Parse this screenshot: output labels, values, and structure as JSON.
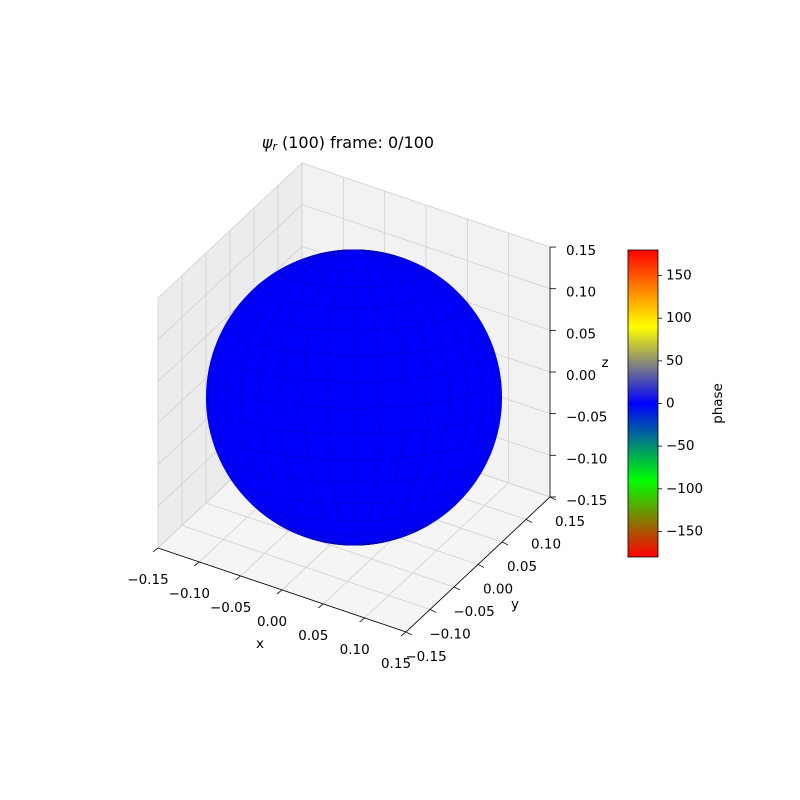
{
  "chart_data": {
    "type": "surface3d",
    "title": {
      "symbol": "ψ",
      "subscript": "r",
      "text": "(100) frame: 0/100"
    },
    "xlabel": "x",
    "ylabel": "y",
    "zlabel": "z",
    "xlim": [
      -0.15,
      0.15
    ],
    "ylim": [
      -0.15,
      0.15
    ],
    "zlim": [
      -0.15,
      0.15
    ],
    "xticks": [
      {
        "value": -0.15,
        "label": "−0.15"
      },
      {
        "value": -0.1,
        "label": "−0.10"
      },
      {
        "value": -0.05,
        "label": "−0.05"
      },
      {
        "value": 0,
        "label": "0.00"
      },
      0.05,
      {
        "value": 0.1,
        "label": "0.10"
      },
      0.15
    ],
    "yticks": [
      {
        "value": -0.15,
        "label": "−0.15"
      },
      {
        "value": -0.1,
        "label": "−0.10"
      },
      {
        "value": -0.05,
        "label": "−0.05"
      },
      {
        "value": 0,
        "label": "0.00"
      },
      0.05,
      {
        "value": 0.1,
        "label": "0.10"
      },
      0.15
    ],
    "zticks": [
      {
        "value": -0.15,
        "label": "−0.15"
      },
      {
        "value": -0.1,
        "label": "−0.10"
      },
      {
        "value": -0.05,
        "label": "−0.05"
      },
      {
        "value": 0,
        "label": "0.00"
      },
      0.05,
      {
        "value": 0.1,
        "label": "0.10"
      },
      0.15
    ],
    "grid": true,
    "surface": {
      "shape": "sphere",
      "radius": 0.15,
      "phase": 0,
      "color": "#0000ff"
    },
    "colorbar": {
      "label": "phase",
      "lim": [
        -180,
        180
      ],
      "ticks": [
        {
          "value": -150,
          "label": "−150"
        },
        {
          "value": -100,
          "label": "−100"
        },
        {
          "value": -50,
          "label": "−50"
        },
        0,
        50,
        100,
        150
      ],
      "colors": [
        "#ff0000",
        "#808000",
        "#00ff00",
        "#008080",
        "#0000ff",
        "#808080",
        "#ffff00",
        "#ff8000",
        "#ff0000"
      ]
    }
  }
}
